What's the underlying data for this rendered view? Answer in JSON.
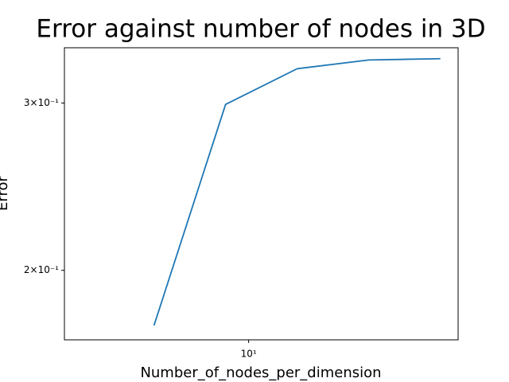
{
  "chart_data": {
    "type": "line",
    "title": "Error against number of nodes in 3D",
    "x_label": "Number_of_nodes_per_dimension",
    "y_label": "Error",
    "x": [
      4,
      8,
      16,
      32,
      64
    ],
    "series": [
      {
        "name": "Error",
        "color": "#1f77b4",
        "values": [
          0.175,
          0.299,
          0.326,
          0.333,
          0.334
        ]
      }
    ],
    "x_log": true,
    "y_log": true,
    "xlim": [
      1.68,
      76
    ],
    "ylim": [
      0.169,
      0.343
    ],
    "xticks": [
      {
        "value": 10,
        "label": "10¹"
      }
    ],
    "yticks": [
      {
        "value": 0.2,
        "label": "2×10⁻¹"
      },
      {
        "value": 0.3,
        "label": "3×10⁻¹"
      }
    ]
  }
}
